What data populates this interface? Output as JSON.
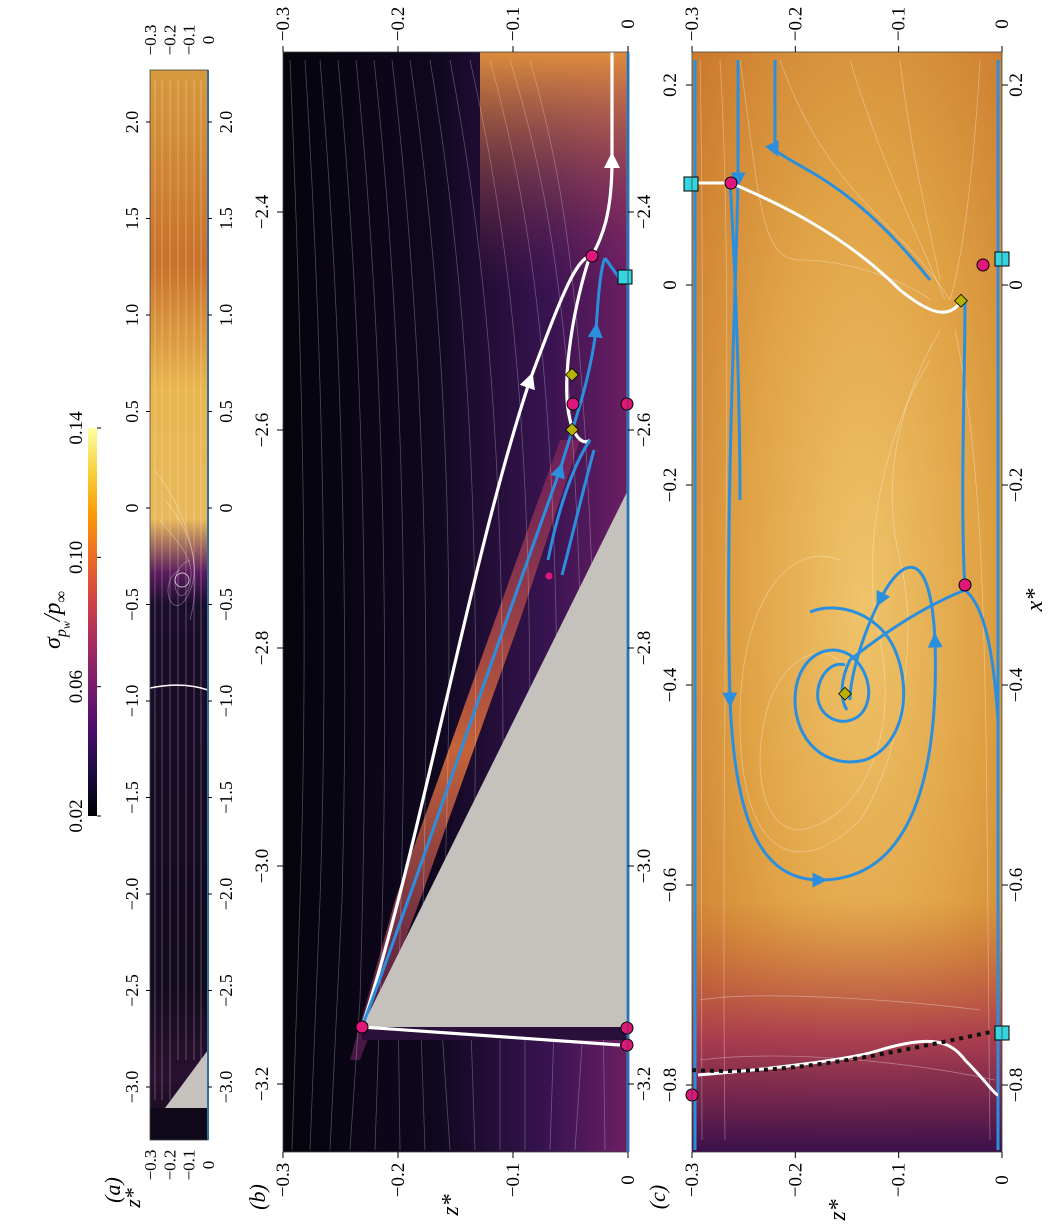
{
  "figure": {
    "colorbar": {
      "label": "σ_{p_w}/p_∞",
      "ticks": [
        "0.02",
        "0.06",
        "0.10",
        "0.14"
      ],
      "colors": [
        "#000004",
        "#1b0c41",
        "#4a0c6b",
        "#781c6d",
        "#a52c60",
        "#cf4446",
        "#ed6925",
        "#fb9b06",
        "#f7d13d",
        "#fcffa4"
      ]
    },
    "panels": [
      {
        "id": "a",
        "label": "(a)",
        "x_ticks": [
          "2.0",
          "1.5",
          "1.0",
          "0.5",
          "0",
          "-0.5",
          "-1.0",
          "-1.5",
          "-2.0",
          "-2.5",
          "-3.0"
        ],
        "z_ticks": [
          "-0.3",
          "-0.2",
          "-0.1",
          "0"
        ],
        "z_label": "z*"
      },
      {
        "id": "b",
        "label": "(b)",
        "x_ticks": [
          "-2.4",
          "-2.6",
          "-2.8",
          "-3.0",
          "-3.2"
        ],
        "z_ticks": [
          "-0.3",
          "-0.2",
          "-0.1",
          "0"
        ],
        "z_label": "z*"
      },
      {
        "id": "c",
        "label": "(c)",
        "x_ticks": [
          "0.2",
          "0",
          "-0.2",
          "-0.4",
          "-0.6",
          "-0.8"
        ],
        "z_ticks": [
          "-0.3",
          "-0.2",
          "-0.1",
          "0"
        ],
        "z_label": "z*",
        "x_label": "x*"
      }
    ],
    "colors": {
      "separatrix_white": "#ffffff",
      "separatrix_blue": "#2b8fe0",
      "node_point": "#e0177a",
      "saddle_square": "#33d6e0",
      "focus_diamond": "#b7b200",
      "wall_shading": "#c5c2bd",
      "transition_line": "#111111"
    }
  }
}
